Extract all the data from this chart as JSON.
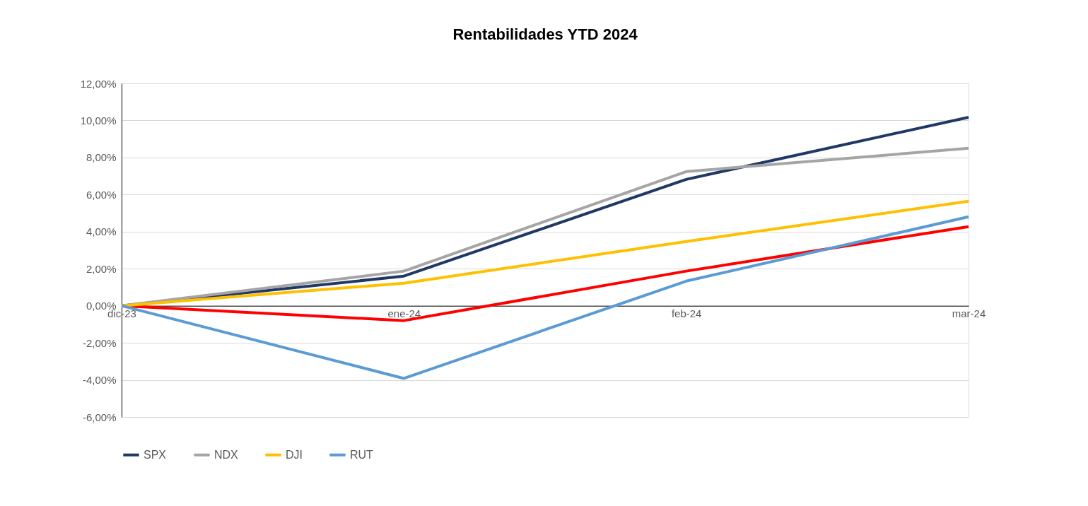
{
  "chart_data": {
    "type": "line",
    "title": "Rentabilidades YTD 2024",
    "categories": [
      "dic-23",
      "ene-24",
      "feb-24",
      "mar-24"
    ],
    "series": [
      {
        "color": "#ff0000",
        "values": [
          0,
          -0.8,
          1.87,
          4.27
        ]
      },
      {
        "name": "SPX",
        "color": "#203864",
        "values": [
          0,
          1.6,
          6.82,
          10.17
        ]
      },
      {
        "name": "NDX",
        "color": "#a5a5a5",
        "values": [
          0,
          1.87,
          7.24,
          8.5
        ]
      },
      {
        "name": "DJI",
        "color": "#ffc000",
        "values": [
          0,
          1.22,
          3.47,
          5.64
        ]
      },
      {
        "name": "RUT",
        "color": "#5b9bd5",
        "values": [
          0,
          -3.92,
          1.33,
          4.8
        ]
      }
    ],
    "ylim": [
      -6,
      12
    ],
    "yticks": [
      {
        "value": -6,
        "label": "-6,00%"
      },
      {
        "value": -4,
        "label": "-4,00%"
      },
      {
        "value": -2,
        "label": "-2,00%"
      },
      {
        "value": 0,
        "label": "0,00%"
      },
      {
        "value": 2,
        "label": "2,00%"
      },
      {
        "value": 4,
        "label": "4,00%"
      },
      {
        "value": 6,
        "label": "6,00%"
      },
      {
        "value": 8,
        "label": "8,00%"
      },
      {
        "value": 10,
        "label": "10,00%"
      },
      {
        "value": 12,
        "label": "12,00%"
      }
    ],
    "grid": "y",
    "legend": "bottom",
    "marker": "none",
    "line_style": "solid"
  }
}
